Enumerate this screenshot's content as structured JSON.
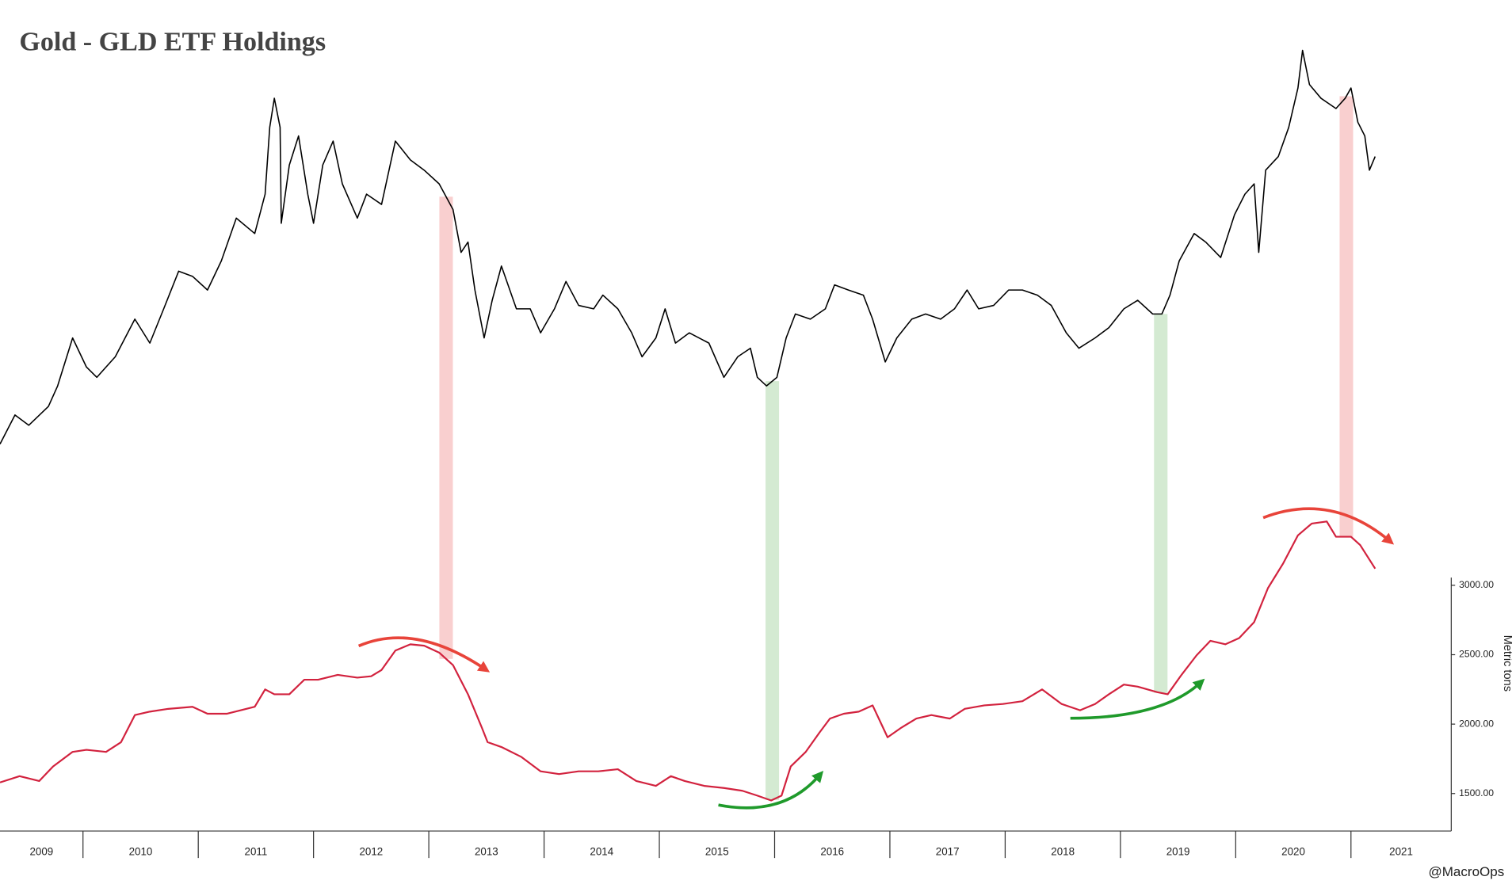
{
  "chart_data": {
    "type": "line",
    "title": "Gold - GLD ETF Holdings",
    "y_label": "Metric tons",
    "annotation": "@MacroOps",
    "xlim": [
      2009.28,
      2021.87
    ],
    "xticks": [
      2009,
      2010,
      2011,
      2012,
      2013,
      2014,
      2015,
      2016,
      2017,
      2018,
      2019,
      2020,
      2021
    ],
    "ylim": [
      1230,
      6903
    ],
    "yticks": [
      {
        "value": 1500,
        "label": "1500.00"
      },
      {
        "value": 2000,
        "label": "2000.00"
      },
      {
        "value": 2500,
        "label": "2500.00"
      },
      {
        "value": 3000,
        "label": "3000.00"
      }
    ],
    "y2lim": [
      -240,
      2060
    ],
    "grid": false,
    "highlights": [
      {
        "x": 2013.15,
        "color": "#f9cfcf"
      },
      {
        "x": 2015.98,
        "color": "#d4ead2"
      },
      {
        "x": 2019.35,
        "color": "#d4ead2"
      },
      {
        "x": 2020.96,
        "color": "#f9cfcf"
      }
    ],
    "series": [
      {
        "color": "#000000",
        "axis": "y2",
        "x": [
          2009.28,
          2009.41,
          2009.53,
          2009.7,
          2009.78,
          2009.91,
          2010.03,
          2010.12,
          2010.28,
          2010.45,
          2010.58,
          2010.7,
          2010.83,
          2010.95,
          2011.08,
          2011.2,
          2011.33,
          2011.49,
          2011.58,
          2011.62,
          2011.66,
          2011.71,
          2011.72,
          2011.79,
          2011.87,
          2011.95,
          2012.0,
          2012.08,
          2012.17,
          2012.25,
          2012.38,
          2012.46,
          2012.59,
          2012.71,
          2012.84,
          2012.96,
          2013.09,
          2013.21,
          2013.28,
          2013.34,
          2013.4,
          2013.48,
          2013.55,
          2013.63,
          2013.76,
          2013.88,
          2013.97,
          2014.09,
          2014.19,
          2014.3,
          2014.43,
          2014.51,
          2014.64,
          2014.76,
          2014.85,
          2014.97,
          2015.05,
          2015.14,
          2015.26,
          2015.43,
          2015.56,
          2015.68,
          2015.79,
          2015.85,
          2015.93,
          2016.02,
          2016.1,
          2016.18,
          2016.31,
          2016.44,
          2016.52,
          2016.64,
          2016.77,
          2016.85,
          2016.96,
          2017.06,
          2017.19,
          2017.31,
          2017.44,
          2017.56,
          2017.67,
          2017.77,
          2017.9,
          2018.03,
          2018.15,
          2018.28,
          2018.4,
          2018.53,
          2018.64,
          2018.78,
          2018.9,
          2019.03,
          2019.15,
          2019.28,
          2019.36,
          2019.43,
          2019.51,
          2019.64,
          2019.74,
          2019.87,
          2019.99,
          2020.08,
          2020.16,
          2020.2,
          2020.26,
          2020.37,
          2020.46,
          2020.54,
          2020.58,
          2020.64,
          2020.74,
          2020.87,
          2020.95,
          2021.0,
          2021.06,
          2021.12,
          2021.16,
          2021.21
        ],
        "values": [
          890,
          975,
          945,
          1000,
          1060,
          1200,
          1115,
          1085,
          1145,
          1255,
          1185,
          1285,
          1395,
          1380,
          1340,
          1425,
          1550,
          1505,
          1620,
          1815,
          1900,
          1815,
          1535,
          1705,
          1790,
          1620,
          1535,
          1705,
          1775,
          1650,
          1550,
          1620,
          1590,
          1775,
          1720,
          1690,
          1650,
          1575,
          1450,
          1480,
          1340,
          1200,
          1310,
          1410,
          1285,
          1285,
          1215,
          1285,
          1365,
          1295,
          1285,
          1325,
          1285,
          1215,
          1145,
          1200,
          1285,
          1185,
          1215,
          1185,
          1085,
          1145,
          1170,
          1085,
          1060,
          1085,
          1200,
          1270,
          1255,
          1285,
          1355,
          1340,
          1325,
          1255,
          1130,
          1200,
          1255,
          1270,
          1255,
          1285,
          1340,
          1285,
          1295,
          1340,
          1340,
          1325,
          1295,
          1215,
          1170,
          1200,
          1230,
          1285,
          1310,
          1270,
          1270,
          1325,
          1425,
          1505,
          1480,
          1435,
          1560,
          1620,
          1650,
          1450,
          1690,
          1730,
          1815,
          1930,
          2040,
          1940,
          1900,
          1870,
          1900,
          1930,
          1830,
          1790,
          1690,
          1730
        ]
      },
      {
        "color": "#d2223e",
        "x": [
          2009.28,
          2009.45,
          2009.62,
          2009.74,
          2009.91,
          2010.03,
          2010.2,
          2010.33,
          2010.45,
          2010.58,
          2010.74,
          2010.95,
          2011.08,
          2011.25,
          2011.37,
          2011.49,
          2011.58,
          2011.66,
          2011.79,
          2011.92,
          2012.04,
          2012.21,
          2012.38,
          2012.5,
          2012.59,
          2012.71,
          2012.84,
          2012.96,
          2013.09,
          2013.21,
          2013.34,
          2013.46,
          2013.51,
          2013.63,
          2013.8,
          2013.97,
          2014.13,
          2014.3,
          2014.47,
          2014.64,
          2014.8,
          2014.97,
          2015.1,
          2015.22,
          2015.39,
          2015.56,
          2015.72,
          2015.85,
          2015.97,
          2016.06,
          2016.14,
          2016.27,
          2016.39,
          2016.48,
          2016.6,
          2016.73,
          2016.85,
          2016.98,
          2017.1,
          2017.23,
          2017.36,
          2017.52,
          2017.65,
          2017.82,
          2017.98,
          2018.15,
          2018.32,
          2018.49,
          2018.65,
          2018.78,
          2018.9,
          2019.03,
          2019.15,
          2019.32,
          2019.41,
          2019.53,
          2019.66,
          2019.78,
          2019.91,
          2020.03,
          2020.16,
          2020.28,
          2020.41,
          2020.54,
          2020.66,
          2020.79,
          2020.87,
          2021.0,
          2021.08,
          2021.21
        ],
        "values": [
          1580,
          1625,
          1590,
          1695,
          1800,
          1815,
          1800,
          1870,
          2065,
          2090,
          2110,
          2125,
          2075,
          2075,
          2100,
          2125,
          2250,
          2215,
          2215,
          2320,
          2320,
          2355,
          2335,
          2345,
          2390,
          2530,
          2575,
          2565,
          2515,
          2425,
          2215,
          1975,
          1870,
          1835,
          1765,
          1660,
          1640,
          1660,
          1660,
          1675,
          1590,
          1555,
          1625,
          1590,
          1555,
          1540,
          1520,
          1485,
          1450,
          1485,
          1695,
          1800,
          1940,
          2040,
          2075,
          2090,
          2135,
          1905,
          1975,
          2040,
          2065,
          2040,
          2110,
          2135,
          2145,
          2165,
          2250,
          2145,
          2100,
          2145,
          2215,
          2285,
          2270,
          2230,
          2215,
          2355,
          2495,
          2600,
          2575,
          2620,
          2735,
          2980,
          3155,
          3360,
          3445,
          3460,
          3350,
          3350,
          3290,
          3120
        ]
      }
    ]
  }
}
